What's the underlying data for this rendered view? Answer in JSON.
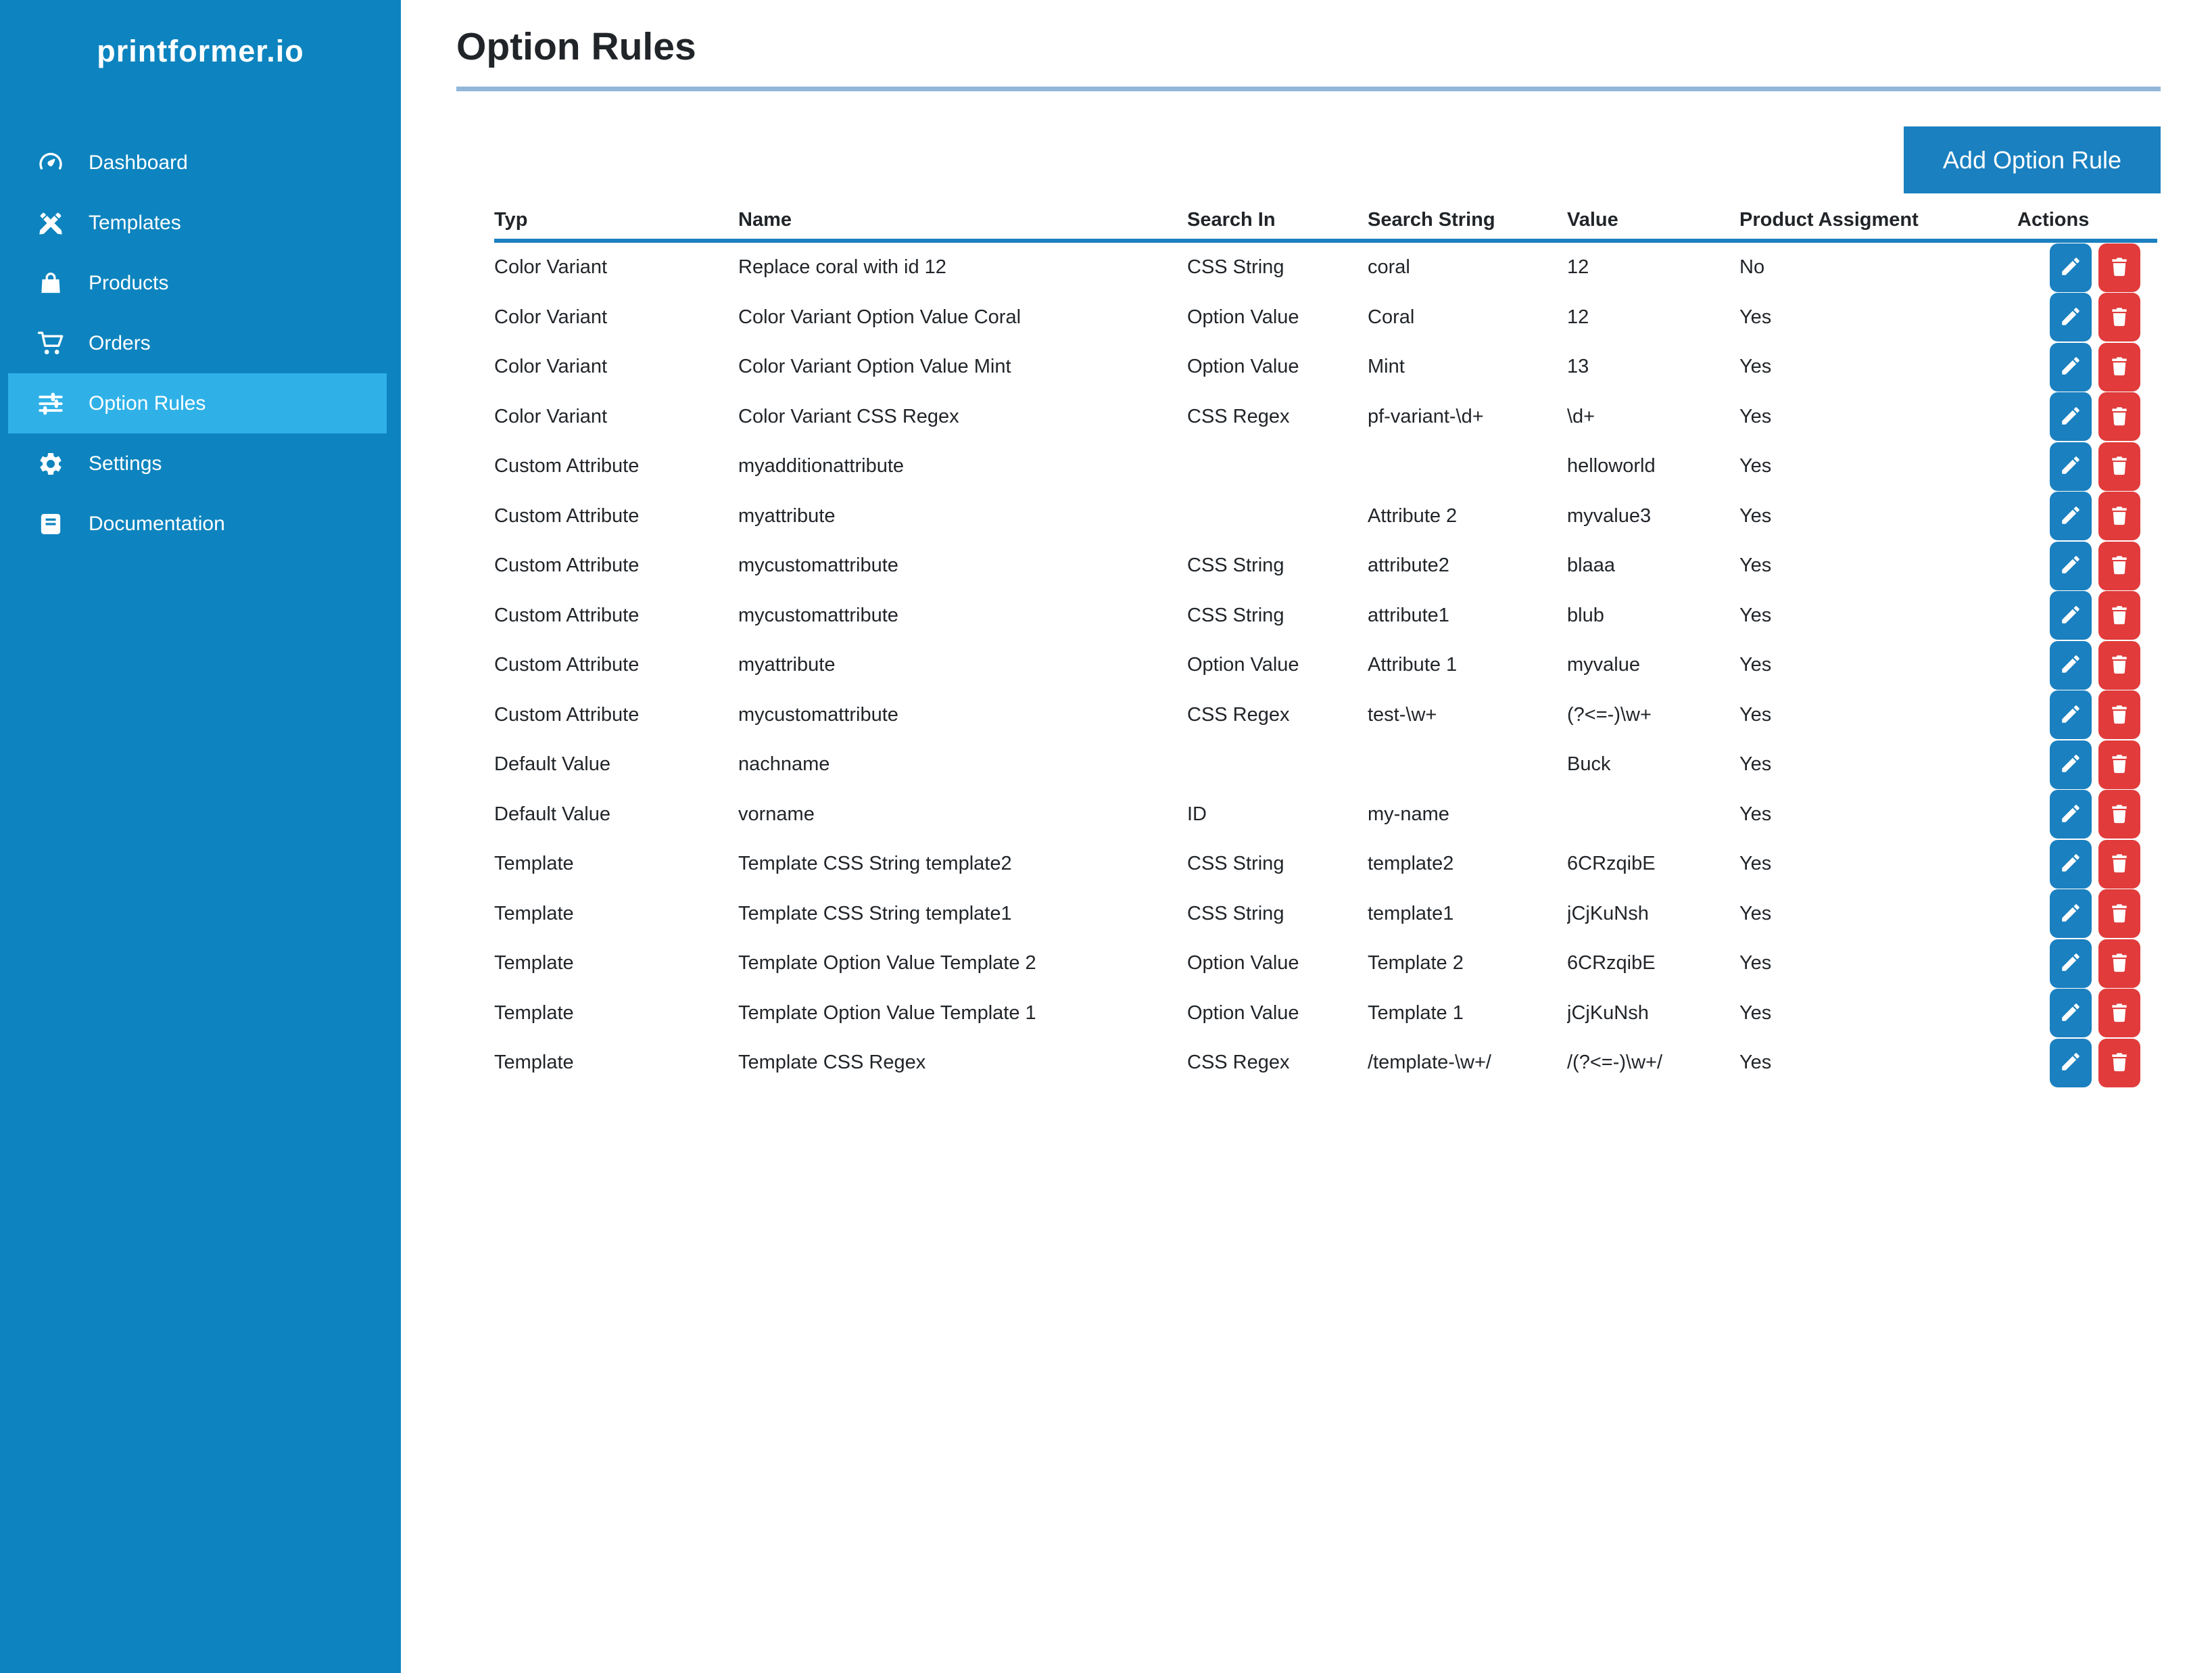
{
  "app": {
    "brand": "printformer.io"
  },
  "colors": {
    "sidebar_bg": "#0d84bf",
    "sidebar_active": "#2fb1e8",
    "accent": "#1a80c0",
    "danger": "#e13b3b",
    "heading_underline": "#93b7d9",
    "text_dark": "#212529"
  },
  "sidebar": {
    "items": [
      {
        "label": "Dashboard",
        "icon": "gauge-icon",
        "active": false
      },
      {
        "label": "Templates",
        "icon": "design-tools-icon",
        "active": false
      },
      {
        "label": "Products",
        "icon": "shopping-bag-icon",
        "active": false
      },
      {
        "label": "Orders",
        "icon": "shopping-cart-icon",
        "active": false
      },
      {
        "label": "Option Rules",
        "icon": "sliders-icon",
        "active": true
      },
      {
        "label": "Settings",
        "icon": "gear-icon",
        "active": false
      },
      {
        "label": "Documentation",
        "icon": "book-icon",
        "active": false
      }
    ]
  },
  "page": {
    "title": "Option Rules",
    "add_button": "Add Option Rule"
  },
  "table": {
    "columns": [
      "Typ",
      "Name",
      "Search In",
      "Search String",
      "Value",
      "Product Assigment",
      "Actions"
    ],
    "action_icons": {
      "edit": "pencil-icon",
      "delete": "trash-icon"
    },
    "rows": [
      [
        "Color Variant",
        "Replace coral with id 12",
        "CSS String",
        "coral",
        "12",
        "No"
      ],
      [
        "Color Variant",
        "Color Variant Option Value Coral",
        "Option Value",
        "Coral",
        "12",
        "Yes"
      ],
      [
        "Color Variant",
        "Color Variant Option Value Mint",
        "Option Value",
        "Mint",
        "13",
        "Yes"
      ],
      [
        "Color Variant",
        "Color Variant CSS Regex",
        "CSS Regex",
        "pf-variant-\\d+",
        "\\d+",
        "Yes"
      ],
      [
        "Custom Attribute",
        "myadditionattribute",
        "",
        "",
        "helloworld",
        "Yes"
      ],
      [
        "Custom Attribute",
        "myattribute",
        "",
        "Attribute 2",
        "myvalue3",
        "Yes"
      ],
      [
        "Custom Attribute",
        "mycustomattribute",
        "CSS String",
        "attribute2",
        "blaaa",
        "Yes"
      ],
      [
        "Custom Attribute",
        "mycustomattribute",
        "CSS String",
        "attribute1",
        "blub",
        "Yes"
      ],
      [
        "Custom Attribute",
        "myattribute",
        "Option Value",
        "Attribute 1",
        "myvalue",
        "Yes"
      ],
      [
        "Custom Attribute",
        "mycustomattribute",
        "CSS Regex",
        "test-\\w+",
        "(?<=-)\\w+",
        "Yes"
      ],
      [
        "Default Value",
        "nachname",
        "",
        "",
        "Buck",
        "Yes"
      ],
      [
        "Default Value",
        "vorname",
        "ID",
        "my-name",
        "",
        "Yes"
      ],
      [
        "Template",
        "Template CSS String template2",
        "CSS String",
        "template2",
        "6CRzqibE",
        "Yes"
      ],
      [
        "Template",
        "Template CSS String template1",
        "CSS String",
        "template1",
        "jCjKuNsh",
        "Yes"
      ],
      [
        "Template",
        "Template Option Value Template 2",
        "Option Value",
        "Template 2",
        "6CRzqibE",
        "Yes"
      ],
      [
        "Template",
        "Template Option Value Template 1",
        "Option Value",
        "Template 1",
        "jCjKuNsh",
        "Yes"
      ],
      [
        "Template",
        "Template CSS Regex",
        "CSS Regex",
        "/template-\\w+/",
        "/(?<=-)\\w+/",
        "Yes"
      ]
    ]
  }
}
